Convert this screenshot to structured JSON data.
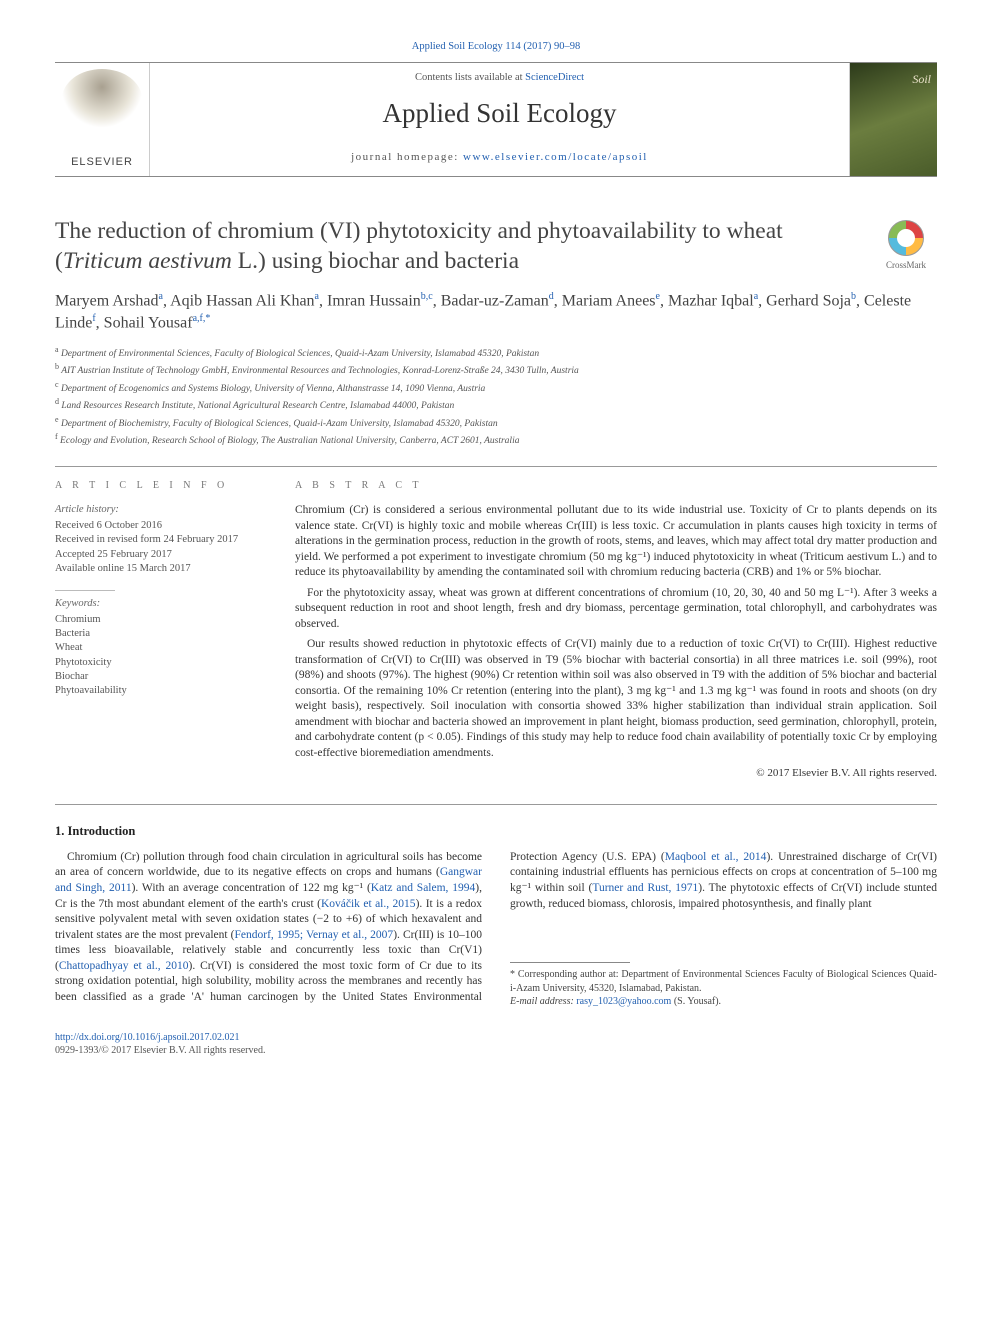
{
  "journal_ref": "Applied Soil Ecology 114 (2017) 90–98",
  "banner": {
    "contents_pre": "Contents lists available at ",
    "contents_link": "ScienceDirect",
    "journal_name": "Applied Soil Ecology",
    "homepage_pre": "journal homepage: ",
    "homepage_url": "www.elsevier.com/locate/apsoil",
    "publisher": "ELSEVIER",
    "cover_label": "Soil"
  },
  "title_parts": {
    "pre": "The reduction of chromium (VI) phytotoxicity and phytoavailability to wheat (",
    "species": "Triticum aestivum",
    "post": " L.) using biochar and bacteria"
  },
  "crossmark_label": "CrossMark",
  "authors_line1": "Maryem Arshad",
  "authors": [
    {
      "name": "Maryem Arshad",
      "sup": "a"
    },
    {
      "name": "Aqib Hassan Ali Khan",
      "sup": "a"
    },
    {
      "name": "Imran Hussain",
      "sup": "b,c"
    },
    {
      "name": "Badar-uz-Zaman",
      "sup": "d"
    },
    {
      "name": "Mariam Anees",
      "sup": "e"
    },
    {
      "name": "Mazhar Iqbal",
      "sup": "a"
    },
    {
      "name": "Gerhard Soja",
      "sup": "b"
    },
    {
      "name": "Celeste Linde",
      "sup": "f"
    },
    {
      "name": "Sohail Yousaf",
      "sup": "a,f,*"
    }
  ],
  "affiliations": [
    {
      "sup": "a",
      "text": "Department of Environmental Sciences, Faculty of Biological Sciences, Quaid-i-Azam University, Islamabad 45320, Pakistan"
    },
    {
      "sup": "b",
      "text": "AIT Austrian Institute of Technology GmbH, Environmental Resources and Technologies, Konrad-Lorenz-Straße 24, 3430 Tulln, Austria"
    },
    {
      "sup": "c",
      "text": "Department of Ecogenomics and Systems Biology, University of Vienna, Althanstrasse 14, 1090 Vienna, Austria"
    },
    {
      "sup": "d",
      "text": "Land Resources Research Institute, National Agricultural Research Centre, Islamabad 44000, Pakistan"
    },
    {
      "sup": "e",
      "text": "Department of Biochemistry, Faculty of Biological Sciences, Quaid-i-Azam University, Islamabad 45320, Pakistan"
    },
    {
      "sup": "f",
      "text": "Ecology and Evolution, Research School of Biology, The Australian National University, Canberra, ACT 2601, Australia"
    }
  ],
  "info": {
    "head_article": "A R T I C L E   I N F O",
    "head_abstract": "A B S T R A C T",
    "history_label": "Article history:",
    "history": [
      "Received 6 October 2016",
      "Received in revised form 24 February 2017",
      "Accepted 25 February 2017",
      "Available online 15 March 2017"
    ],
    "keywords_label": "Keywords:",
    "keywords": [
      "Chromium",
      "Bacteria",
      "Wheat",
      "Phytotoxicity",
      "Biochar",
      "Phytoavailability"
    ]
  },
  "abstract_paras": [
    "Chromium (Cr) is considered a serious environmental pollutant due to its wide industrial use. Toxicity of Cr to plants depends on its valence state. Cr(VI) is highly toxic and mobile whereas Cr(III) is less toxic. Cr accumulation in plants causes high toxicity in terms of alterations in the germination process, reduction in the growth of roots, stems, and leaves, which may affect total dry matter production and yield. We performed a pot experiment to investigate chromium (50 mg kg⁻¹) induced phytotoxicity in wheat (Triticum aestivum L.) and to reduce its phytoavailability by amending the contaminated soil with chromium reducing bacteria (CRB) and 1% or 5% biochar.",
    "For the phytotoxicity assay, wheat was grown at different concentrations of chromium (10, 20, 30, 40 and 50 mg L⁻¹). After 3 weeks a subsequent reduction in root and shoot length, fresh and dry biomass, percentage germination, total chlorophyll, and carbohydrates was observed.",
    "Our results showed reduction in phytotoxic effects of Cr(VI) mainly due to a reduction of toxic Cr(VI) to Cr(III). Highest reductive transformation of Cr(VI) to Cr(III) was observed in T9 (5% biochar with bacterial consortia) in all three matrices i.e. soil (99%), root (98%) and shoots (97%). The highest (90%) Cr retention within soil was also observed in T9 with the addition of 5% biochar and bacterial consortia. Of the remaining 10% Cr retention (entering into the plant), 3 mg kg⁻¹ and 1.3 mg kg⁻¹ was found in roots and shoots (on dry weight basis), respectively. Soil inoculation with consortia showed 33% higher stabilization than individual strain application. Soil amendment with biochar and bacteria showed an improvement in plant height, biomass production, seed germination, chlorophyll, protein, and carbohydrate content (p < 0.05). Findings of this study may help to reduce food chain availability of potentially toxic Cr by employing cost-effective bioremediation amendments."
  ],
  "copyright": "© 2017 Elsevier B.V. All rights reserved.",
  "section1_head": "1. Introduction",
  "intro_html": "Chromium (Cr) pollution through food chain circulation in agricultural soils has become an area of concern worldwide, due to its negative effects on crops and humans (<span class='cite'>Gangwar and Singh, 2011</span>). With an average concentration of 122 mg kg⁻¹ (<span class='cite'>Katz and Salem, 1994</span>), Cr is the 7th most abundant element of the earth's crust (<span class='cite'>Kováčik et al., 2015</span>). It is a redox sensitive polyvalent metal with seven oxidation states (−2 to +6) of which hexavalent and trivalent states are the most prevalent (<span class='cite'>Fendorf, 1995; Vernay et al., 2007</span>). Cr(III) is 10–100 times less bioavailable, relatively stable and concurrently less toxic than Cr(V1) (<span class='cite'>Chattopadhyay et al., 2010</span>). Cr(VI) is considered the most toxic form of Cr due to its strong oxidation potential, high solubility, mobility across the membranes and recently has been classified as a grade 'A' human carcinogen by the United States Environmental Protection Agency (U.S. EPA) (<span class='cite'>Maqbool et al., 2014</span>). Unrestrained discharge of Cr(VI) containing industrial effluents has pernicious effects on crops at concentration of 5–100 mg kg⁻¹ within soil (<span class='cite'>Turner and Rust, 1971</span>). The phytotoxic effects of Cr(VI) include stunted growth, reduced biomass, chlorosis, impaired photosynthesis, and finally plant",
  "footnote": {
    "corr_label": "* Corresponding author at: Department of Environmental Sciences Faculty of Biological Sciences Quaid-i-Azam University, 45320, Islamabad, Pakistan.",
    "email_label": "E-mail address:",
    "email": "rasy_1023@yahoo.com",
    "email_owner": "(S. Yousaf)."
  },
  "doi": {
    "url": "http://dx.doi.org/10.1016/j.apsoil.2017.02.021",
    "issn_line": "0929-1393/© 2017 Elsevier B.V. All rights reserved."
  },
  "colors": {
    "link": "#2360b0",
    "text": "#333333",
    "muted": "#555555",
    "rule": "#888888"
  }
}
